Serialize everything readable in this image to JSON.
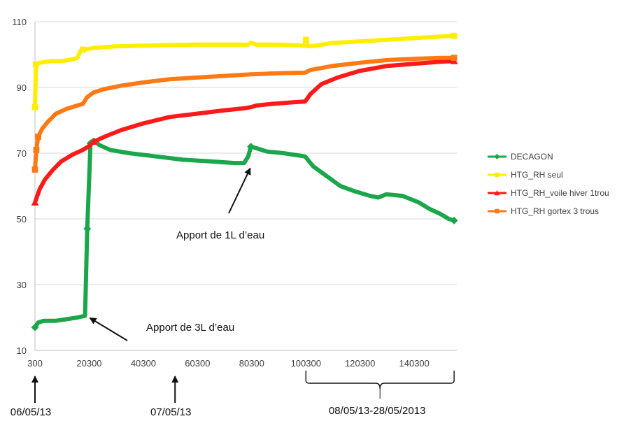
{
  "chart_data": {
    "type": "line",
    "title": "",
    "xlabel": "",
    "ylabel": "",
    "xlim": [
      300,
      156000
    ],
    "ylim": [
      10,
      110
    ],
    "x_ticks": [
      300,
      20300,
      40300,
      60300,
      80300,
      100300,
      120300,
      140300
    ],
    "y_ticks": [
      10,
      30,
      50,
      70,
      90,
      110
    ],
    "grid": "horizontal",
    "legend_position": "right",
    "series": [
      {
        "name": "DECAGON",
        "color": "#1aa64a",
        "marker": "diamond",
        "points": [
          [
            300,
            17
          ],
          [
            1500,
            18.5
          ],
          [
            3500,
            19
          ],
          [
            8000,
            19
          ],
          [
            12000,
            19.5
          ],
          [
            16000,
            20
          ],
          [
            18800,
            20.5
          ],
          [
            19600,
            47
          ],
          [
            20800,
            73
          ],
          [
            22000,
            74
          ],
          [
            24000,
            72.5
          ],
          [
            28000,
            71
          ],
          [
            35000,
            70
          ],
          [
            45000,
            69
          ],
          [
            55000,
            68
          ],
          [
            65000,
            67.5
          ],
          [
            74000,
            67
          ],
          [
            77500,
            67
          ],
          [
            79000,
            69
          ],
          [
            80000,
            72
          ],
          [
            82000,
            71.5
          ],
          [
            86000,
            70.5
          ],
          [
            92000,
            70
          ],
          [
            100000,
            69
          ],
          [
            103000,
            66
          ],
          [
            108000,
            63
          ],
          [
            113000,
            60
          ],
          [
            118000,
            58.5
          ],
          [
            124000,
            57
          ],
          [
            127000,
            56.5
          ],
          [
            130000,
            57.5
          ],
          [
            136000,
            57
          ],
          [
            142000,
            55
          ],
          [
            146000,
            53
          ],
          [
            150000,
            51.5
          ],
          [
            153000,
            50
          ],
          [
            155000,
            49.5
          ]
        ],
        "marked_points": [
          [
            300,
            17
          ],
          [
            19600,
            47
          ],
          [
            20800,
            73
          ],
          [
            80000,
            72
          ],
          [
            155000,
            49.5
          ]
        ]
      },
      {
        "name": "HTG_RH seul",
        "color": "#ffee00",
        "marker": "square",
        "points": [
          [
            300,
            84
          ],
          [
            700,
            97
          ],
          [
            2000,
            97.5
          ],
          [
            6000,
            98
          ],
          [
            10000,
            98
          ],
          [
            14000,
            98.5
          ],
          [
            16000,
            99
          ],
          [
            17000,
            101
          ],
          [
            18000,
            101.5
          ],
          [
            22000,
            102
          ],
          [
            30000,
            102.5
          ],
          [
            40000,
            102.7
          ],
          [
            50000,
            102.9
          ],
          [
            60000,
            103
          ],
          [
            70000,
            103
          ],
          [
            79000,
            103
          ],
          [
            80000,
            103.6
          ],
          [
            82000,
            103
          ],
          [
            90000,
            103
          ],
          [
            98000,
            102.8
          ],
          [
            99500,
            102.6
          ],
          [
            100300,
            104.5
          ],
          [
            101000,
            102.5
          ],
          [
            104000,
            102.7
          ],
          [
            110000,
            103.5
          ],
          [
            120000,
            104
          ],
          [
            130000,
            104.5
          ],
          [
            140000,
            105
          ],
          [
            150000,
            105.5
          ],
          [
            155000,
            105.7
          ]
        ],
        "marked_points": [
          [
            300,
            84
          ],
          [
            700,
            97
          ],
          [
            18000,
            101.5
          ],
          [
            100300,
            104.5
          ],
          [
            155000,
            105.7
          ]
        ]
      },
      {
        "name": "HTG_RH_voile hiver 1trou",
        "color": "#ff1a1a",
        "marker": "triangle",
        "points": [
          [
            300,
            55
          ],
          [
            2000,
            59
          ],
          [
            4000,
            62
          ],
          [
            7000,
            65
          ],
          [
            10000,
            67.5
          ],
          [
            14000,
            69.5
          ],
          [
            18000,
            71
          ],
          [
            20000,
            72
          ],
          [
            22000,
            73.5
          ],
          [
            26000,
            75
          ],
          [
            32000,
            77
          ],
          [
            40000,
            79
          ],
          [
            50000,
            81
          ],
          [
            60000,
            82
          ],
          [
            70000,
            83
          ],
          [
            78000,
            83.7
          ],
          [
            80000,
            84
          ],
          [
            82000,
            84.5
          ],
          [
            88000,
            85
          ],
          [
            96000,
            85.5
          ],
          [
            100000,
            85.7
          ],
          [
            102000,
            88
          ],
          [
            106000,
            91
          ],
          [
            112000,
            93
          ],
          [
            120000,
            95
          ],
          [
            130000,
            96.5
          ],
          [
            140000,
            97.2
          ],
          [
            150000,
            97.8
          ],
          [
            155000,
            98
          ]
        ],
        "marked_points": [
          [
            300,
            55
          ],
          [
            22000,
            73.5
          ],
          [
            155000,
            98
          ]
        ]
      },
      {
        "name": "HTG_RH gortex 3 trous",
        "color": "#ff7a14",
        "marker": "square",
        "points": [
          [
            300,
            65
          ],
          [
            800,
            71
          ],
          [
            1500,
            75
          ],
          [
            3000,
            77.5
          ],
          [
            5000,
            79.5
          ],
          [
            8000,
            82
          ],
          [
            12000,
            83.5
          ],
          [
            16000,
            84.5
          ],
          [
            18000,
            85
          ],
          [
            19500,
            87
          ],
          [
            22000,
            88.5
          ],
          [
            26000,
            89.5
          ],
          [
            32000,
            90.5
          ],
          [
            40000,
            91.5
          ],
          [
            50000,
            92.5
          ],
          [
            60000,
            93
          ],
          [
            70000,
            93.5
          ],
          [
            80000,
            94
          ],
          [
            90000,
            94.3
          ],
          [
            100000,
            94.5
          ],
          [
            102000,
            95.3
          ],
          [
            110000,
            96.5
          ],
          [
            120000,
            97.5
          ],
          [
            130000,
            98.3
          ],
          [
            140000,
            98.7
          ],
          [
            150000,
            99
          ],
          [
            155000,
            99
          ]
        ],
        "marked_points": [
          [
            300,
            65
          ],
          [
            800,
            71
          ],
          [
            1500,
            75
          ],
          [
            155000,
            99
          ]
        ]
      }
    ],
    "annotations": [
      {
        "text": "Apport de 3L d’eau",
        "target": [
          19000,
          20.5
        ]
      },
      {
        "text": "Apport de 1L d’eau",
        "target": [
          79500,
          65
        ]
      }
    ],
    "date_labels": [
      {
        "text": "06/05/13",
        "at_x": 300
      },
      {
        "text": "07/05/13",
        "at_x": 52000
      },
      {
        "text": "08/05/13-28/05/2013",
        "range": [
          100300,
          155000
        ]
      }
    ]
  }
}
